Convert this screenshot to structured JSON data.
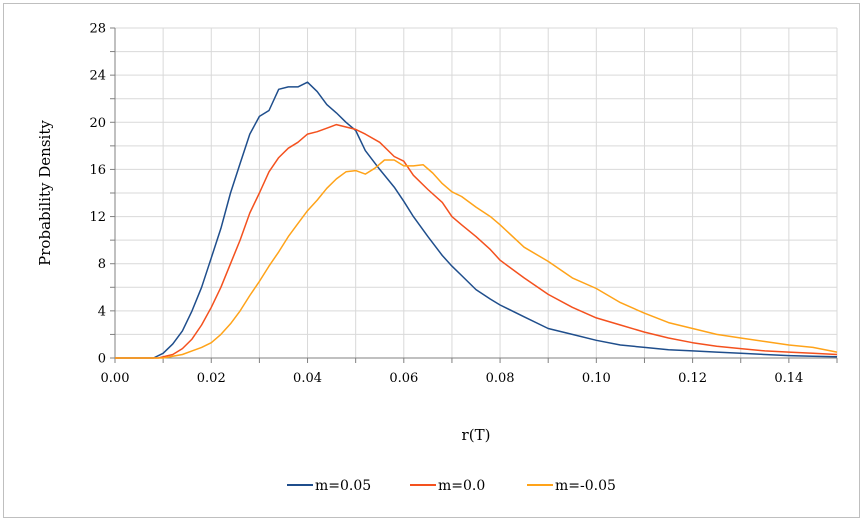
{
  "chart_data": {
    "type": "line",
    "title": "",
    "xlabel": "r(T)",
    "ylabel": "Probability Density",
    "xlim": [
      0,
      0.15
    ],
    "ylim": [
      0,
      28
    ],
    "x_ticks": [
      "0.00",
      "0.02",
      "0.04",
      "0.06",
      "0.08",
      "0.10",
      "0.12",
      "0.14"
    ],
    "y_ticks": [
      "0",
      "4",
      "8",
      "12",
      "16",
      "20",
      "24",
      "28"
    ],
    "grid": true,
    "legend_position": "bottom",
    "series": [
      {
        "name": "m=0.05",
        "color": "#1f4e8c",
        "x": [
          0.0,
          0.005,
          0.008,
          0.01,
          0.012,
          0.014,
          0.016,
          0.018,
          0.02,
          0.022,
          0.024,
          0.026,
          0.028,
          0.03,
          0.032,
          0.034,
          0.036,
          0.038,
          0.04,
          0.042,
          0.044,
          0.046,
          0.048,
          0.05,
          0.052,
          0.055,
          0.058,
          0.06,
          0.062,
          0.065,
          0.068,
          0.07,
          0.072,
          0.075,
          0.078,
          0.08,
          0.085,
          0.09,
          0.095,
          0.1,
          0.105,
          0.11,
          0.115,
          0.12,
          0.125,
          0.13,
          0.135,
          0.14,
          0.145,
          0.15
        ],
        "y": [
          0,
          0,
          0,
          0.4,
          1.2,
          2.3,
          4.0,
          6.0,
          8.5,
          11.0,
          14.0,
          16.5,
          19.0,
          20.5,
          21.0,
          22.8,
          23.0,
          23.0,
          23.4,
          22.6,
          21.5,
          20.8,
          20.0,
          19.3,
          17.6,
          16.0,
          14.5,
          13.3,
          12.0,
          10.3,
          8.7,
          7.8,
          7.0,
          5.8,
          5.0,
          4.5,
          3.5,
          2.5,
          2.0,
          1.5,
          1.1,
          0.9,
          0.7,
          0.6,
          0.5,
          0.4,
          0.3,
          0.2,
          0.15,
          0.1
        ]
      },
      {
        "name": "m=0.0",
        "color": "#f4511e",
        "x": [
          0.0,
          0.009,
          0.012,
          0.014,
          0.016,
          0.018,
          0.02,
          0.022,
          0.024,
          0.026,
          0.028,
          0.03,
          0.032,
          0.034,
          0.036,
          0.038,
          0.04,
          0.042,
          0.044,
          0.046,
          0.048,
          0.05,
          0.052,
          0.055,
          0.058,
          0.06,
          0.062,
          0.065,
          0.068,
          0.07,
          0.072,
          0.075,
          0.078,
          0.08,
          0.085,
          0.09,
          0.095,
          0.1,
          0.105,
          0.11,
          0.115,
          0.12,
          0.125,
          0.13,
          0.135,
          0.14,
          0.145,
          0.15
        ],
        "y": [
          0,
          0,
          0.3,
          0.8,
          1.6,
          2.8,
          4.3,
          6.0,
          8.0,
          10.0,
          12.3,
          14.0,
          15.8,
          17.0,
          17.8,
          18.3,
          19.0,
          19.2,
          19.5,
          19.8,
          19.6,
          19.4,
          19.0,
          18.3,
          17.1,
          16.7,
          15.5,
          14.3,
          13.2,
          12.0,
          11.3,
          10.3,
          9.2,
          8.3,
          6.8,
          5.4,
          4.3,
          3.4,
          2.8,
          2.2,
          1.7,
          1.3,
          1.0,
          0.8,
          0.6,
          0.5,
          0.4,
          0.3
        ]
      },
      {
        "name": "m=-0.05",
        "color": "#ffa319",
        "x": [
          0.0,
          0.01,
          0.014,
          0.016,
          0.018,
          0.02,
          0.022,
          0.024,
          0.026,
          0.028,
          0.03,
          0.032,
          0.034,
          0.036,
          0.038,
          0.04,
          0.042,
          0.044,
          0.046,
          0.048,
          0.05,
          0.052,
          0.054,
          0.056,
          0.058,
          0.06,
          0.062,
          0.064,
          0.066,
          0.068,
          0.07,
          0.072,
          0.075,
          0.078,
          0.08,
          0.085,
          0.09,
          0.095,
          0.1,
          0.105,
          0.11,
          0.115,
          0.12,
          0.125,
          0.13,
          0.135,
          0.14,
          0.145,
          0.15
        ],
        "y": [
          0,
          0,
          0.3,
          0.6,
          0.9,
          1.3,
          2.0,
          2.9,
          4.0,
          5.3,
          6.5,
          7.8,
          9.0,
          10.3,
          11.4,
          12.5,
          13.4,
          14.4,
          15.2,
          15.8,
          15.9,
          15.6,
          16.1,
          16.8,
          16.8,
          16.3,
          16.3,
          16.4,
          15.7,
          14.8,
          14.1,
          13.7,
          12.8,
          12.0,
          11.3,
          9.4,
          8.2,
          6.8,
          5.9,
          4.7,
          3.8,
          3.0,
          2.5,
          2.0,
          1.7,
          1.4,
          1.1,
          0.9,
          0.5
        ]
      }
    ]
  }
}
